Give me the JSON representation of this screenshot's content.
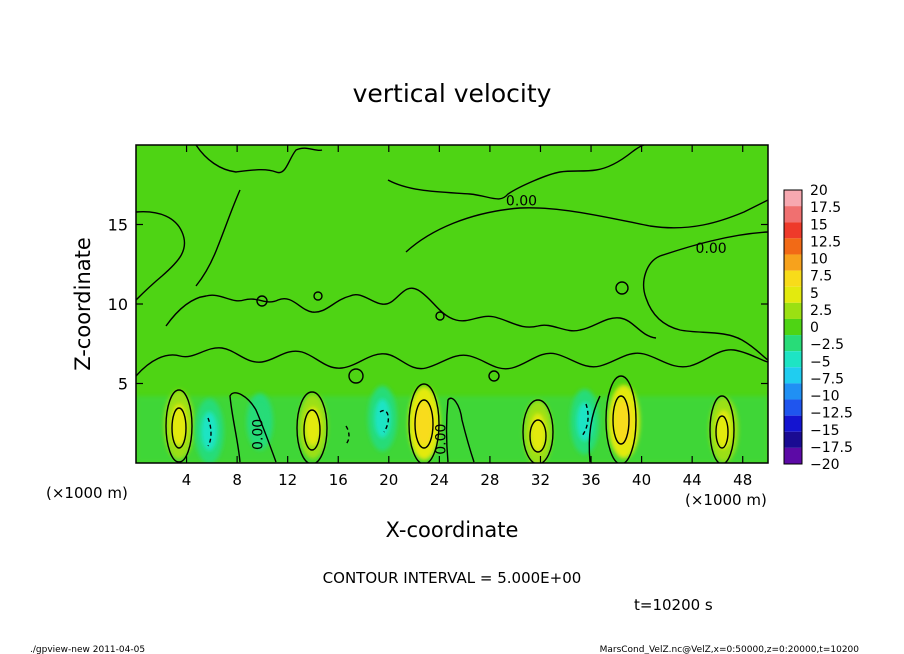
{
  "chart_data": {
    "type": "heatmap",
    "title": "vertical velocity",
    "xlabel": "X-coordinate",
    "ylabel": "Z-coordinate",
    "x_unit_label": "(×1000 m)",
    "xlim": [
      0,
      50
    ],
    "ylim": [
      0,
      20
    ],
    "x_ticks": [
      4,
      8,
      12,
      16,
      20,
      24,
      28,
      32,
      36,
      40,
      44,
      48
    ],
    "y_ticks": [
      5,
      10,
      15
    ],
    "grid": false,
    "colorbar": {
      "placement": "right",
      "levels": [
        20,
        17.5,
        15,
        12.5,
        10,
        7.5,
        5,
        2.5,
        0,
        -2.5,
        -5,
        -7.5,
        -10,
        -12.5,
        -15,
        -17.5,
        -20
      ],
      "labels": [
        "20",
        "17.5",
        "15",
        "12.5",
        "10",
        "7.5",
        "5",
        "2.5",
        "0",
        "−2.5",
        "−5",
        "−7.5",
        "−10",
        "−12.5",
        "−15",
        "−17.5",
        "−20"
      ],
      "colors": [
        "#f7a8b0",
        "#f07070",
        "#ee3a2a",
        "#f26a16",
        "#f7a21c",
        "#f8dc1a",
        "#e3ea0e",
        "#9be012",
        "#4ed414",
        "#28dc78",
        "#1ee4c4",
        "#20cdf0",
        "#2090f4",
        "#1f55ee",
        "#1414d0",
        "#1a0b92",
        "#5c0aa6"
      ]
    },
    "background_level": 0,
    "updrafts": [
      {
        "x": 3.4,
        "z": 2.4,
        "value": 6
      },
      {
        "x": 14.0,
        "z": 2.3,
        "value": 5
      },
      {
        "x": 22.8,
        "z": 2.5,
        "value": 7
      },
      {
        "x": 31.8,
        "z": 1.9,
        "value": 5
      },
      {
        "x": 38.6,
        "z": 2.6,
        "value": 7
      },
      {
        "x": 46.5,
        "z": 2.1,
        "value": 5
      }
    ],
    "downdrafts": [
      {
        "x": 5.8,
        "z": 2.0,
        "value": -5
      },
      {
        "x": 9.8,
        "z": 2.6,
        "value": -3
      },
      {
        "x": 19.5,
        "z": 2.8,
        "value": -5
      },
      {
        "x": 35.5,
        "z": 2.6,
        "value": -5
      }
    ],
    "contour_labels": [
      {
        "text": "0.00",
        "x": 30.5,
        "z": 16.2
      },
      {
        "text": "0.00",
        "x": 45.5,
        "z": 13.2
      },
      {
        "text": "0.00",
        "x": 10.0,
        "z": 1.8
      },
      {
        "text": "0.00",
        "x": 24.5,
        "z": 1.5
      }
    ],
    "contour_interval_text": "CONTOUR INTERVAL = 5.000E+00",
    "time_text": "t=10200 s"
  },
  "footer": {
    "left": "./gpview-new   2011-04-05",
    "right": "MarsCond_VelZ.nc@VelZ,x=0:50000,z=0:20000,t=10200"
  }
}
